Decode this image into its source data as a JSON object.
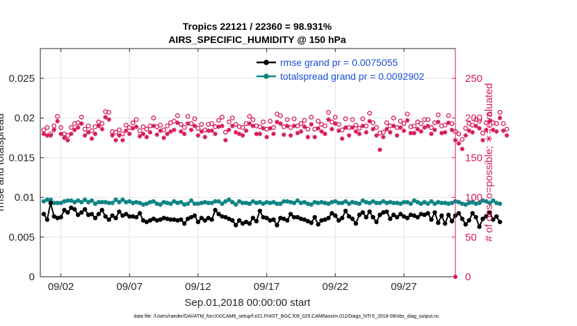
{
  "chart_data": {
    "type": "line",
    "title_line1": "Tropics 22121 / 22360 = 98.931%",
    "title_line2": "AIRS_SPECIFIC_HUMIDITY @ 150 hPa",
    "xlabel": "Sep.01,2018 00:00:00 start",
    "ylabel_left": "rmse and totalspread",
    "ylabel_right": "# of obs: o=possible; ∗=evaluated",
    "footer": "data file: /Users/raeder/DAI/ATM_forcXX/CAM6_setup/f.e21.FHIST_BGC.f09_025.CAM6assim.011/Diags_NTrS_2018-09/obs_diag_output.nc",
    "x_domain": [
      0.5,
      30.75
    ],
    "x_ticks": [
      {
        "value": 2,
        "label": "09/02"
      },
      {
        "value": 7,
        "label": "09/07"
      },
      {
        "value": 12,
        "label": "09/12"
      },
      {
        "value": 17,
        "label": "09/17"
      },
      {
        "value": 22,
        "label": "09/22"
      },
      {
        "value": 27,
        "label": "09/27"
      }
    ],
    "ylim_left": [
      0,
      0.02875
    ],
    "yticks_left": [
      {
        "value": 0,
        "label": "0"
      },
      {
        "value": 0.005,
        "label": "0.005"
      },
      {
        "value": 0.01,
        "label": "0.01"
      },
      {
        "value": 0.015,
        "label": "0.015"
      },
      {
        "value": 0.02,
        "label": "0.02"
      },
      {
        "value": 0.025,
        "label": "0.025"
      }
    ],
    "ylim_right": [
      0,
      287.5
    ],
    "yticks_right": [
      {
        "value": 0,
        "label": "0"
      },
      {
        "value": 50,
        "label": "50"
      },
      {
        "value": 100,
        "label": "100"
      },
      {
        "value": 150,
        "label": "150"
      },
      {
        "value": 200,
        "label": "200"
      },
      {
        "value": 250,
        "label": "250"
      }
    ],
    "grid": true,
    "legend_position": "top-right",
    "x_start": 0.75,
    "x_step": 0.25,
    "series": [
      {
        "name": "rmse grand pr = 0.0075055",
        "axis": "left",
        "color": "#000000",
        "text_color": "#1a4fd6",
        "values": [
          0.0079,
          0.0072,
          0.0093,
          0.0076,
          0.0074,
          0.0075,
          0.0084,
          0.0081,
          0.0087,
          0.0085,
          0.0078,
          0.0081,
          0.0085,
          0.0078,
          0.0079,
          0.0074,
          0.0079,
          0.0084,
          0.0076,
          0.0072,
          0.0077,
          0.0074,
          0.0082,
          0.0077,
          0.0079,
          0.0076,
          0.0076,
          0.0075,
          0.008,
          0.0071,
          0.0069,
          0.0071,
          0.0073,
          0.0071,
          0.0072,
          0.0074,
          0.0073,
          0.0072,
          0.0072,
          0.0071,
          0.0072,
          0.0067,
          0.0073,
          0.0075,
          0.0077,
          0.0069,
          0.0074,
          0.0071,
          0.0074,
          0.0072,
          0.0084,
          0.0079,
          0.0076,
          0.0075,
          0.0073,
          0.0071,
          0.0065,
          0.0071,
          0.0067,
          0.0069,
          0.0067,
          0.0074,
          0.007,
          0.0083,
          0.0075,
          0.0074,
          0.0071,
          0.0072,
          0.0065,
          0.0074,
          0.0073,
          0.0071,
          0.0079,
          0.0075,
          0.0075,
          0.0073,
          0.0072,
          0.007,
          0.0068,
          0.0075,
          0.0066,
          0.0071,
          0.0072,
          0.0074,
          0.008,
          0.0077,
          0.0071,
          0.0074,
          0.0083,
          0.0076,
          0.0073,
          0.0067,
          0.0078,
          0.0081,
          0.0075,
          0.0082,
          0.0075,
          0.0069,
          0.0078,
          0.0081,
          0.0082,
          0.0073,
          0.0078,
          0.0075,
          0.0079,
          0.0076,
          0.0074,
          0.0078,
          0.0077,
          0.0075,
          0.0079,
          0.0078,
          0.008,
          0.0072,
          0.0081,
          0.0068,
          0.0077,
          0.0067,
          0.0078,
          0.007,
          0.0077,
          0.008,
          0.0073,
          0.0066,
          0.0071,
          0.008,
          0.0075,
          0.0063,
          0.0073,
          0.0076,
          0.0081,
          0.0072,
          0.0076,
          0.0069
        ]
      },
      {
        "name": "totalspread grand pr = 0.0092902",
        "axis": "left",
        "color": "#0f8585",
        "text_color": "#1a4fd6",
        "values": [
          0.0095,
          0.0097,
          0.0097,
          0.0093,
          0.0093,
          0.0093,
          0.0095,
          0.0096,
          0.0096,
          0.0094,
          0.0096,
          0.0094,
          0.0097,
          0.0094,
          0.0096,
          0.0092,
          0.0094,
          0.0094,
          0.0094,
          0.0093,
          0.0093,
          0.0097,
          0.0094,
          0.0097,
          0.0094,
          0.0095,
          0.0093,
          0.0094,
          0.0093,
          0.0091,
          0.0092,
          0.0094,
          0.0095,
          0.0092,
          0.0091,
          0.0094,
          0.0093,
          0.0092,
          0.0095,
          0.0093,
          0.0094,
          0.0091,
          0.0092,
          0.0096,
          0.0092,
          0.0092,
          0.0093,
          0.0094,
          0.0093,
          0.0093,
          0.0095,
          0.0095,
          0.0092,
          0.0095,
          0.0097,
          0.0094,
          0.0091,
          0.0095,
          0.0093,
          0.0093,
          0.0092,
          0.0095,
          0.0093,
          0.0094,
          0.0092,
          0.0094,
          0.0093,
          0.0094,
          0.0092,
          0.0092,
          0.0095,
          0.0095,
          0.0094,
          0.0093,
          0.0096,
          0.0093,
          0.0094,
          0.0092,
          0.0091,
          0.0094,
          0.0093,
          0.0094,
          0.0093,
          0.0092,
          0.0094,
          0.0095,
          0.0093,
          0.0093,
          0.0095,
          0.0092,
          0.0094,
          0.0093,
          0.0092,
          0.0096,
          0.0094,
          0.0093,
          0.0095,
          0.0093,
          0.0093,
          0.0095,
          0.0093,
          0.0094,
          0.0093,
          0.0093,
          0.0092,
          0.0094,
          0.0094,
          0.0092,
          0.0096,
          0.0094,
          0.0092,
          0.0094,
          0.0092,
          0.0095,
          0.0092,
          0.0094,
          0.0093,
          0.0093,
          0.0092,
          0.0093,
          0.0095,
          0.0094,
          0.0092,
          0.0091,
          0.0093,
          0.0094,
          0.0092,
          0.0093,
          0.0096,
          0.0095,
          0.0093,
          0.0096,
          0.0093,
          0.0092
        ]
      },
      {
        "name": "obs possible",
        "axis": "right",
        "marker": "circle",
        "color": "#d61a5a",
        "values": [
          185,
          188,
          180,
          190,
          202,
          188,
          180,
          178,
          188,
          193,
          194,
          201,
          186,
          190,
          184,
          189,
          195,
          193,
          208,
          207,
          183,
          182,
          185,
          180,
          191,
          188,
          194,
          198,
          184,
          189,
          186,
          190,
          200,
          189,
          191,
          185,
          190,
          194,
          196,
          203,
          192,
          188,
          202,
          193,
          199,
          187,
          192,
          185,
          192,
          193,
          189,
          197,
          201,
          182,
          195,
          200,
          192,
          189,
          188,
          193,
          202,
          198,
          190,
          189,
          195,
          186,
          196,
          188,
          205,
          203,
          189,
          198,
          188,
          199,
          190,
          193,
          197,
          186,
          201,
          186,
          196,
          192,
          190,
          207,
          195,
          201,
          192,
          185,
          199,
          188,
          198,
          191,
          187,
          199,
          190,
          206,
          194,
          188,
          181,
          182,
          194,
          190,
          200,
          188,
          196,
          193,
          205,
          189,
          190,
          195,
          193,
          198,
          198,
          188,
          194,
          204,
          190,
          191,
          203,
          193,
          183,
          180,
          173,
          187,
          193,
          191,
          198,
          196,
          181,
          194,
          205,
          194,
          193,
          207,
          193,
          186
        ]
      },
      {
        "name": "obs evaluated",
        "axis": "right",
        "marker": "star",
        "color": "#d61a5a",
        "values": [
          180,
          178,
          178,
          185,
          196,
          180,
          175,
          172,
          180,
          185,
          188,
          193,
          178,
          182,
          174,
          180,
          190,
          186,
          201,
          198,
          178,
          172,
          178,
          172,
          184,
          180,
          187,
          189,
          177,
          180,
          176,
          182,
          190,
          179,
          184,
          175,
          180,
          183,
          185,
          194,
          183,
          180,
          193,
          185,
          190,
          178,
          183,
          176,
          184,
          184,
          180,
          189,
          190,
          172,
          185,
          190,
          182,
          180,
          178,
          184,
          193,
          190,
          180,
          180,
          187,
          176,
          187,
          180,
          195,
          193,
          179,
          190,
          178,
          190,
          181,
          183,
          189,
          176,
          192,
          176,
          187,
          183,
          180,
          198,
          186,
          193,
          184,
          174,
          188,
          178,
          188,
          183,
          180,
          190,
          182,
          196,
          186,
          178,
          160,
          176,
          186,
          182,
          190,
          178,
          188,
          184,
          197,
          181,
          181,
          186,
          183,
          188,
          190,
          180,
          185,
          195,
          181,
          182,
          194,
          185,
          172,
          168,
          161,
          178,
          184,
          182,
          190,
          187,
          172,
          185,
          196,
          185,
          183,
          200,
          184,
          178
        ]
      }
    ]
  }
}
